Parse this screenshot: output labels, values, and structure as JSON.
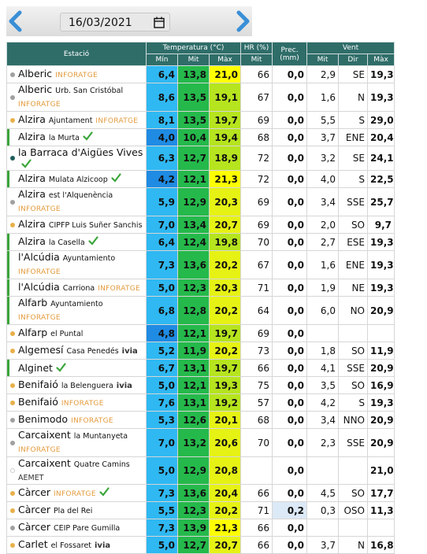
{
  "date": "16/03/2021",
  "table": {
    "headers": {
      "station": "Estació",
      "temperature": "Temperatura (°C)",
      "hr": "HR (%)",
      "prec": "Prec. (mm)",
      "wind": "Vent",
      "sub": [
        "Mín",
        "Mit",
        "Màx",
        "Mit",
        "Mit",
        "Dir",
        "Màx"
      ]
    },
    "rows": [
      {
        "name": "Alberic",
        "source": "INFORATGE",
        "marker": "gray",
        "values": [
          "6,4",
          "13,8",
          "21,0",
          "66",
          "0,0",
          "2,9",
          "SE",
          "19,3"
        ]
      },
      {
        "name": "Alberic",
        "place": "Urb. San Cristóbal",
        "source": "INFORATGE",
        "marker": "gray",
        "values": [
          "8,6",
          "13,5",
          "19,1",
          "67",
          "0,0",
          "1,6",
          "N",
          "19,3"
        ]
      },
      {
        "name": "Alzira",
        "place": "Ajuntament",
        "source": "INFORATGE",
        "marker": "orange",
        "values": [
          "8,1",
          "13,5",
          "19,7",
          "69",
          "0,0",
          "5,5",
          "S",
          "29,0"
        ]
      },
      {
        "name": "Alzira",
        "place": "la Murta",
        "check": true,
        "marker": "bar",
        "values": [
          "4,0",
          "10,4",
          "19,4",
          "68",
          "0,0",
          "3,7",
          "ENE",
          "20,4"
        ]
      },
      {
        "name": "la Barraca d'Aigües Vives",
        "check": true,
        "marker": "teal",
        "values": [
          "6,3",
          "12,7",
          "18,9",
          "72",
          "0,0",
          "3,2",
          "SE",
          "24,1"
        ]
      },
      {
        "name": "Alzira",
        "place": "Mulata Alzicoop",
        "check": true,
        "marker": "bar",
        "values": [
          "4,2",
          "12,1",
          "21,3",
          "72",
          "0,0",
          "4,0",
          "S",
          "22,5"
        ]
      },
      {
        "name": "Alzira",
        "place": "est l'Alquenència",
        "source": "INFORATGE",
        "marker": "gray",
        "values": [
          "5,9",
          "12,9",
          "20,3",
          "69",
          "0,0",
          "3,4",
          "SSE",
          "25,7"
        ]
      },
      {
        "name": "Alzira",
        "place": "CIPFP Luis Suñer Sanchis",
        "marker": "orange",
        "values": [
          "7,0",
          "13,4",
          "20,7",
          "69",
          "0,0",
          "2,0",
          "SO",
          "9,7"
        ]
      },
      {
        "name": "Alzira",
        "place": "la Casella",
        "check": true,
        "marker": "bar",
        "values": [
          "6,4",
          "12,4",
          "19,8",
          "70",
          "0,0",
          "2,7",
          "ESE",
          "19,3"
        ]
      },
      {
        "name": "l'Alcúdia",
        "place": "Ayuntamiento",
        "source": "INFORATGE",
        "marker": "bar",
        "values": [
          "7,3",
          "13,6",
          "20,2",
          "67",
          "0,0",
          "1,6",
          "ENE",
          "19,3"
        ]
      },
      {
        "name": "l'Alcúdia",
        "place": "Carriona",
        "source": "INFORATGE",
        "marker": "bar",
        "values": [
          "5,0",
          "12,3",
          "20,3",
          "71",
          "0,0",
          "1,9",
          "NE",
          "19,3"
        ]
      },
      {
        "name": "Alfarb",
        "place": "Ayuntamiento",
        "source": "INFORATGE",
        "marker": "bar",
        "values": [
          "6,8",
          "12,8",
          "20,2",
          "64",
          "0,0",
          "6,0",
          "NO",
          "20,9"
        ]
      },
      {
        "name": "Alfarp",
        "place": "el Puntal",
        "marker": "orange",
        "values": [
          "4,8",
          "12,1",
          "19,7",
          "69",
          "0,0",
          null,
          null,
          null
        ]
      },
      {
        "name": "Algemesí",
        "place": "Casa Penedés",
        "source": "ivia",
        "marker": "orange",
        "values": [
          "5,2",
          "11,9",
          "20,2",
          "73",
          "0,0",
          "1,8",
          "SO",
          "11,9"
        ]
      },
      {
        "name": "Alginet",
        "check": true,
        "marker": "bar",
        "values": [
          "6,7",
          "13,1",
          "19,7",
          "66",
          "0,0",
          "4,1",
          "SSE",
          "20,9"
        ]
      },
      {
        "name": "Benifaió",
        "place": "la Belenguera",
        "source": "ivia",
        "marker": "orange",
        "values": [
          "5,0",
          "12,1",
          "19,3",
          "75",
          "0,0",
          "3,5",
          "SO",
          "16,9"
        ]
      },
      {
        "name": "Benifaió",
        "source": "INFORATGE",
        "marker": "orange",
        "values": [
          "7,6",
          "13,1",
          "19,2",
          "57",
          "0,0",
          "4,2",
          "S",
          "19,3"
        ]
      },
      {
        "name": "Benimodo",
        "source": "INFORATGE",
        "marker": "gray",
        "values": [
          "5,3",
          "12,6",
          "20,1",
          "68",
          "0,0",
          "3,4",
          "NNO",
          "20,9"
        ]
      },
      {
        "name": "Carcaixent",
        "place": "la Muntanyeta",
        "source": "INFORATGE",
        "marker": "gray",
        "values": [
          "7,0",
          "13,2",
          "20,6",
          "70",
          "0,0",
          "2,3",
          "SSE",
          "20,9"
        ]
      },
      {
        "name": "Carcaixent",
        "place": "Quatre Camins",
        "source": "AEMET",
        "marker": "hollow",
        "values": [
          "5,0",
          "12,9",
          "20,8",
          null,
          "0,0",
          null,
          null,
          "21,0"
        ]
      },
      {
        "name": "Càrcer",
        "source": "INFORATGE",
        "check": true,
        "marker": "orange",
        "values": [
          "7,3",
          "13,6",
          "20,4",
          "66",
          "0,0",
          "4,5",
          "SO",
          "17,7"
        ]
      },
      {
        "name": "Càrcer",
        "place": "Pla del Rei",
        "marker": "orange",
        "values": [
          "5,5",
          "12,3",
          "20,2",
          "71",
          "0,2",
          "0,3",
          "OSO",
          "11,3"
        ]
      },
      {
        "name": "Càrcer",
        "place": "CEIP Pare Gumilla",
        "marker": "gray",
        "values": [
          "7,3",
          "13,9",
          "21,3",
          "66",
          "0,0",
          null,
          null,
          null
        ]
      },
      {
        "name": "Carlet",
        "place": "el Fossaret",
        "source": "ivia",
        "marker": "orange",
        "values": [
          "5,0",
          "12,7",
          "20,7",
          "66",
          "0,0",
          "3,7",
          "N",
          "16,8"
        ]
      }
    ]
  }
}
